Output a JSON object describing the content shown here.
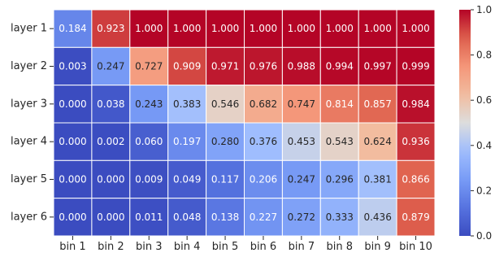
{
  "chart_data": {
    "type": "heatmap",
    "rows": [
      "layer 1",
      "layer 2",
      "layer 3",
      "layer 4",
      "layer 5",
      "layer 6"
    ],
    "columns": [
      "bin 1",
      "bin 2",
      "bin 3",
      "bin 4",
      "bin 5",
      "bin 6",
      "bin 7",
      "bin 8",
      "bin 9",
      "bin 10"
    ],
    "values": [
      [
        0.184,
        0.923,
        1.0,
        1.0,
        1.0,
        1.0,
        1.0,
        1.0,
        1.0,
        1.0
      ],
      [
        0.003,
        0.247,
        0.727,
        0.909,
        0.971,
        0.976,
        0.988,
        0.994,
        0.997,
        0.999
      ],
      [
        0.0,
        0.038,
        0.243,
        0.383,
        0.546,
        0.682,
        0.747,
        0.814,
        0.857,
        0.984
      ],
      [
        0.0,
        0.002,
        0.06,
        0.197,
        0.28,
        0.376,
        0.453,
        0.543,
        0.624,
        0.936
      ],
      [
        0.0,
        0.0,
        0.009,
        0.049,
        0.117,
        0.206,
        0.247,
        0.296,
        0.381,
        0.866
      ],
      [
        0.0,
        0.0,
        0.011,
        0.048,
        0.138,
        0.227,
        0.272,
        0.333,
        0.436,
        0.879
      ]
    ],
    "value_format_decimals": 3,
    "colormap": "coolwarm",
    "vmin": 0.0,
    "vmax": 1.0,
    "colorbar": {
      "ticks": [
        0.0,
        0.2,
        0.4,
        0.6,
        0.8,
        1.0
      ],
      "tick_labels": [
        "0.0",
        "0.2",
        "0.4",
        "0.6",
        "0.8",
        "1.0"
      ],
      "placement": "right"
    },
    "cell_border_color": "#ffffff",
    "title": "",
    "xlabel": "",
    "ylabel": ""
  }
}
